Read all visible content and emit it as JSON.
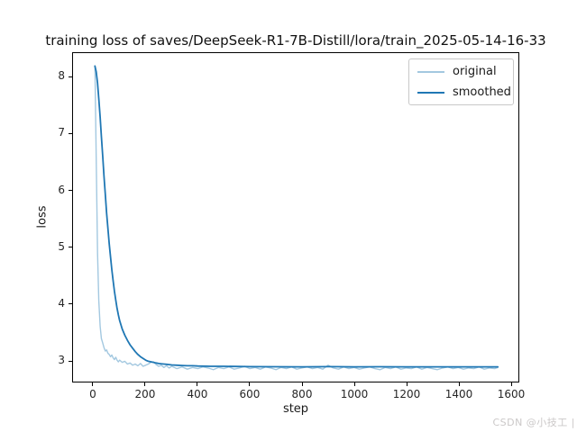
{
  "page": {
    "background": "#ffffff",
    "watermark": "CSDN @小技工 |"
  },
  "chart_data": {
    "type": "line",
    "title": "training loss of saves/DeepSeek-R1-7B-Distill/lora/train_2025-05-14-16-33",
    "xlabel": "step",
    "ylabel": "loss",
    "xlim": [
      -79,
      1631
    ],
    "ylim": [
      2.62,
      8.43
    ],
    "xticks": [
      0,
      200,
      400,
      600,
      800,
      1000,
      1200,
      1400,
      1600
    ],
    "yticks": [
      3,
      4,
      5,
      6,
      7,
      8
    ],
    "grid": false,
    "legend_position": "upper right",
    "legend_border_color": "#c8c8c8",
    "series": [
      {
        "name": "original",
        "color": "#a3c8e0",
        "width": 1.4,
        "points": [
          [
            5,
            8.2
          ],
          [
            10,
            6.6
          ],
          [
            15,
            4.9
          ],
          [
            20,
            4.05
          ],
          [
            25,
            3.6
          ],
          [
            30,
            3.38
          ],
          [
            35,
            3.3
          ],
          [
            40,
            3.22
          ],
          [
            45,
            3.16
          ],
          [
            50,
            3.18
          ],
          [
            55,
            3.12
          ],
          [
            60,
            3.1
          ],
          [
            65,
            3.06
          ],
          [
            70,
            3.09
          ],
          [
            75,
            3.04
          ],
          [
            80,
            3.01
          ],
          [
            85,
            3.05
          ],
          [
            90,
            3.0
          ],
          [
            95,
            2.97
          ],
          [
            100,
            3.0
          ],
          [
            110,
            2.96
          ],
          [
            120,
            2.98
          ],
          [
            130,
            2.93
          ],
          [
            140,
            2.95
          ],
          [
            150,
            2.91
          ],
          [
            160,
            2.93
          ],
          [
            170,
            2.9
          ],
          [
            180,
            2.94
          ],
          [
            190,
            2.89
          ],
          [
            200,
            2.91
          ],
          [
            210,
            2.93
          ],
          [
            220,
            2.96
          ],
          [
            230,
            2.97
          ],
          [
            240,
            2.92
          ],
          [
            250,
            2.89
          ],
          [
            260,
            2.91
          ],
          [
            270,
            2.87
          ],
          [
            280,
            2.9
          ],
          [
            290,
            2.86
          ],
          [
            300,
            2.89
          ],
          [
            320,
            2.85
          ],
          [
            340,
            2.88
          ],
          [
            360,
            2.84
          ],
          [
            380,
            2.87
          ],
          [
            400,
            2.85
          ],
          [
            420,
            2.88
          ],
          [
            440,
            2.86
          ],
          [
            460,
            2.83
          ],
          [
            480,
            2.87
          ],
          [
            500,
            2.85
          ],
          [
            520,
            2.88
          ],
          [
            540,
            2.84
          ],
          [
            560,
            2.86
          ],
          [
            580,
            2.89
          ],
          [
            600,
            2.85
          ],
          [
            620,
            2.87
          ],
          [
            640,
            2.84
          ],
          [
            660,
            2.88
          ],
          [
            680,
            2.86
          ],
          [
            700,
            2.83
          ],
          [
            720,
            2.87
          ],
          [
            740,
            2.85
          ],
          [
            760,
            2.88
          ],
          [
            780,
            2.84
          ],
          [
            800,
            2.86
          ],
          [
            820,
            2.88
          ],
          [
            840,
            2.85
          ],
          [
            860,
            2.87
          ],
          [
            880,
            2.84
          ],
          [
            900,
            2.91
          ],
          [
            920,
            2.86
          ],
          [
            940,
            2.84
          ],
          [
            960,
            2.88
          ],
          [
            980,
            2.85
          ],
          [
            1000,
            2.87
          ],
          [
            1020,
            2.84
          ],
          [
            1040,
            2.86
          ],
          [
            1060,
            2.88
          ],
          [
            1080,
            2.85
          ],
          [
            1100,
            2.83
          ],
          [
            1120,
            2.87
          ],
          [
            1140,
            2.85
          ],
          [
            1160,
            2.88
          ],
          [
            1180,
            2.84
          ],
          [
            1200,
            2.86
          ],
          [
            1220,
            2.85
          ],
          [
            1240,
            2.88
          ],
          [
            1260,
            2.84
          ],
          [
            1280,
            2.87
          ],
          [
            1300,
            2.85
          ],
          [
            1320,
            2.83
          ],
          [
            1340,
            2.86
          ],
          [
            1360,
            2.88
          ],
          [
            1380,
            2.85
          ],
          [
            1400,
            2.87
          ],
          [
            1420,
            2.84
          ],
          [
            1440,
            2.86
          ],
          [
            1460,
            2.85
          ],
          [
            1480,
            2.88
          ],
          [
            1500,
            2.84
          ],
          [
            1520,
            2.86
          ],
          [
            1540,
            2.85
          ],
          [
            1552,
            2.87
          ]
        ]
      },
      {
        "name": "smoothed",
        "color": "#1f77b4",
        "width": 1.8,
        "points": [
          [
            5,
            8.2
          ],
          [
            10,
            8.1
          ],
          [
            15,
            7.9
          ],
          [
            20,
            7.62
          ],
          [
            25,
            7.3
          ],
          [
            30,
            6.95
          ],
          [
            35,
            6.6
          ],
          [
            40,
            6.25
          ],
          [
            45,
            5.92
          ],
          [
            50,
            5.6
          ],
          [
            55,
            5.32
          ],
          [
            60,
            5.06
          ],
          [
            65,
            4.82
          ],
          [
            70,
            4.6
          ],
          [
            75,
            4.4
          ],
          [
            80,
            4.22
          ],
          [
            85,
            4.06
          ],
          [
            90,
            3.92
          ],
          [
            95,
            3.8
          ],
          [
            100,
            3.7
          ],
          [
            110,
            3.55
          ],
          [
            120,
            3.44
          ],
          [
            130,
            3.35
          ],
          [
            140,
            3.27
          ],
          [
            150,
            3.21
          ],
          [
            160,
            3.15
          ],
          [
            170,
            3.1
          ],
          [
            180,
            3.06
          ],
          [
            190,
            3.03
          ],
          [
            200,
            3.0
          ],
          [
            210,
            2.98
          ],
          [
            220,
            2.97
          ],
          [
            230,
            2.96
          ],
          [
            240,
            2.95
          ],
          [
            250,
            2.94
          ],
          [
            260,
            2.935
          ],
          [
            270,
            2.93
          ],
          [
            280,
            2.925
          ],
          [
            290,
            2.92
          ],
          [
            300,
            2.915
          ],
          [
            320,
            2.91
          ],
          [
            340,
            2.905
          ],
          [
            360,
            2.9
          ],
          [
            380,
            2.9
          ],
          [
            400,
            2.895
          ],
          [
            450,
            2.89
          ],
          [
            500,
            2.89
          ],
          [
            550,
            2.888
          ],
          [
            600,
            2.885
          ],
          [
            700,
            2.883
          ],
          [
            800,
            2.882
          ],
          [
            900,
            2.884
          ],
          [
            1000,
            2.882
          ],
          [
            1100,
            2.883
          ],
          [
            1200,
            2.882
          ],
          [
            1300,
            2.881
          ],
          [
            1400,
            2.882
          ],
          [
            1500,
            2.881
          ],
          [
            1552,
            2.882
          ]
        ]
      }
    ]
  }
}
